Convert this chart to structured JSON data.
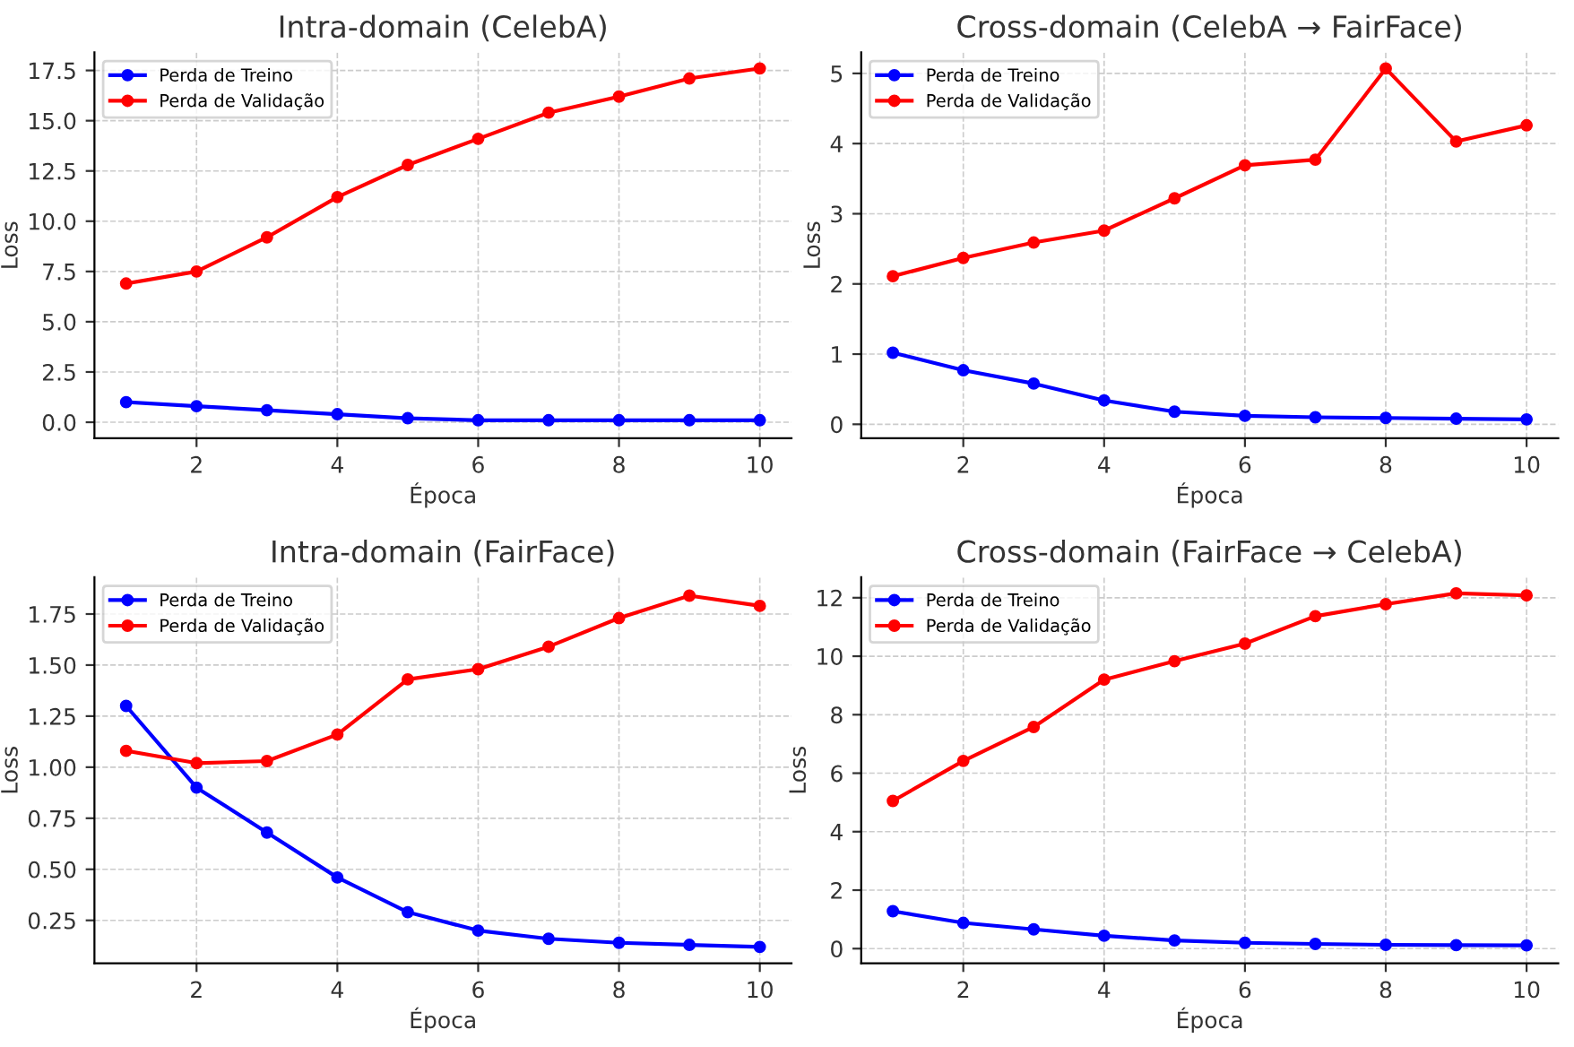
{
  "chart_data": [
    {
      "type": "line",
      "title": "Intra-domain (CelebA)",
      "xlabel": "Época",
      "ylabel": "Loss",
      "x": [
        1,
        2,
        3,
        4,
        5,
        6,
        7,
        8,
        9,
        10
      ],
      "xlim": [
        0.55,
        10.45
      ],
      "xticks": [
        2,
        4,
        6,
        8,
        10
      ],
      "ylim": [
        -0.8,
        18.4
      ],
      "yticks": [
        {
          "value": 0,
          "label": "0.0"
        },
        2.5,
        {
          "value": 5,
          "label": "5.0"
        },
        7.5,
        {
          "value": 10,
          "label": "10.0"
        },
        12.5,
        {
          "value": 15,
          "label": "15.0"
        },
        17.5
      ],
      "grid": true,
      "legend": "top left",
      "marker": "circle",
      "line_style": "solid",
      "series": [
        {
          "name": "Perda de Treino",
          "color": "#0000ff",
          "values": [
            1.0,
            0.8,
            0.6,
            0.4,
            0.2,
            0.1,
            0.1,
            0.1,
            0.1,
            0.1
          ]
        },
        {
          "name": "Perda de Validação",
          "color": "#ff0000",
          "values": [
            6.9,
            7.5,
            9.2,
            11.2,
            12.8,
            14.1,
            15.4,
            16.2,
            17.1,
            17.6
          ]
        }
      ]
    },
    {
      "type": "line",
      "title": "Cross-domain (CelebA → FairFace)",
      "xlabel": "Época",
      "ylabel": "Loss",
      "x": [
        1,
        2,
        3,
        4,
        5,
        6,
        7,
        8,
        9,
        10
      ],
      "xlim": [
        0.55,
        10.45
      ],
      "xticks": [
        2,
        4,
        6,
        8,
        10
      ],
      "ylim": [
        -0.2,
        5.3
      ],
      "yticks": [
        0,
        1,
        2,
        3,
        4,
        5
      ],
      "grid": true,
      "legend": "top left",
      "marker": "circle",
      "line_style": "solid",
      "series": [
        {
          "name": "Perda de Treino",
          "color": "#0000ff",
          "values": [
            1.02,
            0.77,
            0.58,
            0.34,
            0.18,
            0.12,
            0.1,
            0.09,
            0.08,
            0.07
          ]
        },
        {
          "name": "Perda de Validação",
          "color": "#ff0000",
          "values": [
            2.11,
            2.37,
            2.59,
            2.76,
            3.22,
            3.69,
            3.77,
            5.07,
            4.03,
            4.26
          ]
        }
      ]
    },
    {
      "type": "line",
      "title": "Intra-domain (FairFace)",
      "xlabel": "Época",
      "ylabel": "Loss",
      "x": [
        1,
        2,
        3,
        4,
        5,
        6,
        7,
        8,
        9,
        10
      ],
      "xlim": [
        0.55,
        10.45
      ],
      "xticks": [
        2,
        4,
        6,
        8,
        10
      ],
      "ylim": [
        0.04,
        1.93
      ],
      "yticks": [
        0.25,
        {
          "value": 0.5,
          "label": "0.50"
        },
        0.75,
        {
          "value": 1.0,
          "label": "1.00"
        },
        1.25,
        {
          "value": 1.5,
          "label": "1.50"
        },
        1.75
      ],
      "grid": true,
      "legend": "top left",
      "marker": "circle",
      "line_style": "solid",
      "series": [
        {
          "name": "Perda de Treino",
          "color": "#0000ff",
          "values": [
            1.3,
            0.9,
            0.68,
            0.46,
            0.29,
            0.2,
            0.16,
            0.14,
            0.13,
            0.12
          ]
        },
        {
          "name": "Perda de Validação",
          "color": "#ff0000",
          "values": [
            1.08,
            1.02,
            1.03,
            1.16,
            1.43,
            1.48,
            1.59,
            1.73,
            1.84,
            1.79
          ]
        }
      ]
    },
    {
      "type": "line",
      "title": "Cross-domain (FairFace → CelebA)",
      "xlabel": "Época",
      "ylabel": "Loss",
      "x": [
        1,
        2,
        3,
        4,
        5,
        6,
        7,
        8,
        9,
        10
      ],
      "xlim": [
        0.55,
        10.45
      ],
      "xticks": [
        2,
        4,
        6,
        8,
        10
      ],
      "ylim": [
        -0.5,
        12.7
      ],
      "yticks": [
        0,
        2,
        4,
        6,
        8,
        10,
        12
      ],
      "grid": true,
      "legend": "top left",
      "marker": "circle",
      "line_style": "solid",
      "series": [
        {
          "name": "Perda de Treino",
          "color": "#0000ff",
          "values": [
            1.28,
            0.88,
            0.66,
            0.44,
            0.28,
            0.2,
            0.16,
            0.13,
            0.12,
            0.11
          ]
        },
        {
          "name": "Perda de Validação",
          "color": "#ff0000",
          "values": [
            5.05,
            6.42,
            7.58,
            9.2,
            9.83,
            10.43,
            11.37,
            11.78,
            12.15,
            12.08
          ]
        }
      ]
    }
  ]
}
